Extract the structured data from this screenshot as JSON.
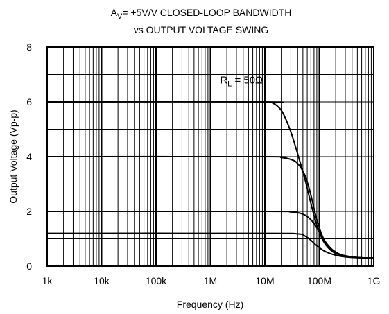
{
  "chart_data": {
    "type": "line",
    "title": {
      "line1_prefix": "A",
      "line1_sub": "V",
      "line1_rest": "= +5V/V CLOSED-LOOP BANDWIDTH",
      "line2": "vs OUTPUT VOLTAGE SWING"
    },
    "xlabel": "Frequency (Hz)",
    "ylabel": "Output Voltage (Vp-p)",
    "xscale": "log",
    "xlim": [
      1000,
      1000000000
    ],
    "ylim": [
      0,
      8
    ],
    "grid": true,
    "x_ticks": [
      {
        "value": 1000,
        "label": "1k"
      },
      {
        "value": 10000,
        "label": "10k"
      },
      {
        "value": 100000,
        "label": "100k"
      },
      {
        "value": 1000000,
        "label": "1M"
      },
      {
        "value": 10000000,
        "label": "10M"
      },
      {
        "value": 100000000,
        "label": "100M"
      },
      {
        "value": 1000000000,
        "label": "1G"
      }
    ],
    "y_ticks": [
      {
        "value": 0,
        "label": "0"
      },
      {
        "value": 2,
        "label": "2"
      },
      {
        "value": 4,
        "label": "4"
      },
      {
        "value": 6,
        "label": "6"
      },
      {
        "value": 8,
        "label": "8"
      }
    ],
    "annotation": {
      "prefix": "R",
      "sub": "L",
      "rest": " = 50Ω",
      "x": 1500000,
      "y": 6.8
    },
    "series": [
      {
        "x": [
          1000,
          10000000,
          14000000,
          18000000,
          22000000,
          30000000,
          40000000,
          55000000,
          70000000,
          90000000,
          120000000,
          170000000,
          250000000,
          400000000,
          700000000,
          1000000000
        ],
        "y": [
          6.0,
          6.0,
          5.95,
          5.8,
          5.55,
          4.9,
          4.1,
          3.15,
          2.3,
          1.5,
          0.9,
          0.55,
          0.4,
          0.33,
          0.3,
          0.3
        ]
      },
      {
        "x": [
          1000,
          10000000,
          20000000,
          30000000,
          40000000,
          55000000,
          70000000,
          90000000,
          120000000,
          170000000,
          250000000,
          400000000,
          700000000,
          1000000000
        ],
        "y": [
          4.0,
          4.0,
          3.97,
          3.9,
          3.75,
          3.3,
          2.6,
          1.7,
          1.0,
          0.6,
          0.42,
          0.34,
          0.3,
          0.3
        ]
      },
      {
        "x": [
          1000,
          10000000,
          30000000,
          50000000,
          70000000,
          90000000,
          110000000,
          140000000,
          180000000,
          250000000,
          400000000,
          700000000,
          1000000000
        ],
        "y": [
          2.0,
          2.0,
          1.98,
          1.9,
          1.7,
          1.4,
          1.1,
          0.8,
          0.58,
          0.42,
          0.34,
          0.3,
          0.3
        ]
      },
      {
        "x": [
          1000,
          10000000,
          40000000,
          55000000,
          70000000,
          90000000,
          120000000,
          170000000,
          250000000,
          400000000,
          700000000,
          1000000000
        ],
        "y": [
          1.2,
          1.2,
          1.18,
          1.1,
          0.95,
          0.75,
          0.57,
          0.44,
          0.36,
          0.32,
          0.3,
          0.3
        ]
      }
    ],
    "colors": {
      "line": "#000000",
      "grid": "#000000",
      "background": "#ffffff"
    }
  }
}
